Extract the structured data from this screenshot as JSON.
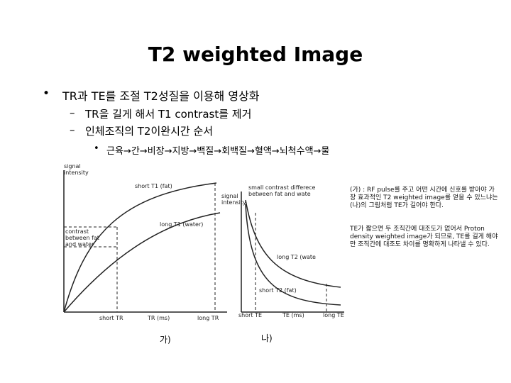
{
  "title": "T2 weighted Image",
  "bullets": {
    "main": "TR과 TE를 조절 T2성질을 이용해 영상화",
    "sub": [
      "TR을 길게 해서 T1 contrast를 제거",
      "인체조직의 T2이완시간 순서"
    ],
    "subsub": "근육→간→비장→지방→백질→회백질→혈액→뇌척수액→물"
  },
  "figure_a": {
    "y_label": "signal intensity",
    "curve_short": "short T1 (fat)",
    "curve_long": "long T1 (water)",
    "contrast": "contrast between fat and water",
    "x_short": "short TR",
    "x_label": "TR (ms)",
    "x_long": "long TR",
    "caption": "가)"
  },
  "figure_b": {
    "contrast": "small contrast differece between fat and wate",
    "y_label": "signal intensity",
    "curve_long": "long T2 (wate",
    "curve_short": "short T2 (fat)",
    "x_short": "short TE",
    "x_label": "TE (ms)",
    "x_long": "long TE",
    "caption": "나)"
  },
  "notes": [
    "(가) : RF pulse를 주고 어떤 시간에 신호를 받아야 가장 효과적인 T2 weighted image를 얻을 수 있느냐는 (나)의 그림처럼 TE가 길어야 한다.",
    "TE가 짧으면 두 조직간에 대조도가 없어서 Proton density weighted image가 되므로, TE를 길게 해야만 조직간에 대조도 차이를 명확하게 나타낼 수 있다."
  ]
}
